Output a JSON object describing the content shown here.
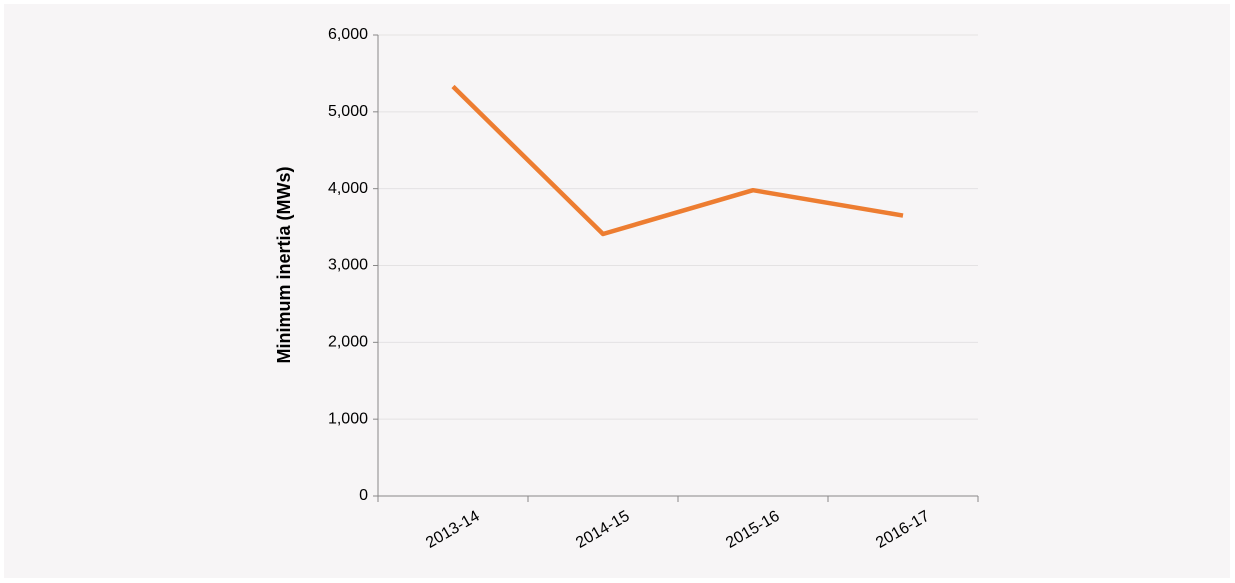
{
  "chart_data": {
    "type": "line",
    "y_label": "Minimum inertia (MWs)",
    "categories": [
      "2013-14",
      "2014-15",
      "2015-16",
      "2016-17"
    ],
    "series": [
      {
        "name": "Minimum inertia",
        "color": "#ed7d31",
        "values": [
          5330,
          3410,
          3980,
          3650
        ]
      }
    ],
    "ylim": [
      0,
      6000
    ],
    "yticks": [
      0,
      {
        "value": 1000,
        "label": "1,000"
      },
      {
        "value": 2000,
        "label": "2,000"
      },
      {
        "value": 3000,
        "label": "3,000"
      },
      {
        "value": 4000,
        "label": "4,000"
      },
      {
        "value": 5000,
        "label": "5,000"
      },
      {
        "value": 6000,
        "label": "6,000"
      }
    ],
    "grid": true
  }
}
